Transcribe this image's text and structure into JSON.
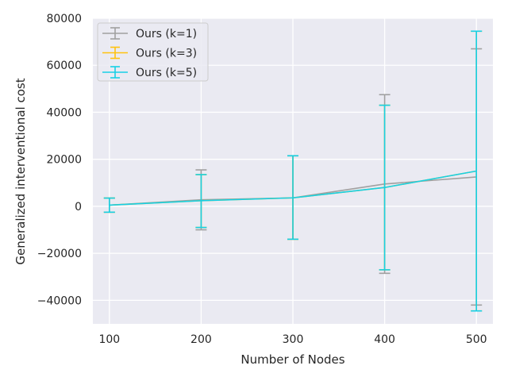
{
  "chart_data": {
    "type": "line",
    "title": "",
    "xlabel": "Number of Nodes",
    "ylabel": "Generalized interventional cost",
    "x": [
      100,
      200,
      300,
      400,
      500
    ],
    "xlim": [
      82,
      518
    ],
    "ylim": [
      -50000,
      80000
    ],
    "xticks": [
      100,
      200,
      300,
      400,
      500
    ],
    "xtick_labels": [
      "100",
      "200",
      "300",
      "400",
      "500"
    ],
    "yticks": [
      -40000,
      -20000,
      0,
      20000,
      40000,
      60000,
      80000
    ],
    "ytick_labels": [
      "−40000",
      "−20000",
      "0",
      "20000",
      "40000",
      "60000",
      "80000"
    ],
    "grid": true,
    "legend_position": "top-left",
    "series": [
      {
        "name": "Ours (k=1)",
        "color": "#a0a0a0",
        "values": [
          500,
          2800,
          3600,
          9500,
          12500
        ],
        "err_low": [
          -2500,
          -10000,
          -14000,
          -28500,
          -42000
        ],
        "err_high": [
          3500,
          15500,
          21500,
          47500,
          67000
        ]
      },
      {
        "name": "Ours (k=3)",
        "color": "#ffc20e",
        "values": [
          500,
          2400,
          3600,
          8000,
          15000
        ],
        "err_low": [
          -2500,
          -9000,
          -14000,
          -27000,
          -44500
        ],
        "err_high": [
          3500,
          13500,
          21500,
          43000,
          74500
        ]
      },
      {
        "name": "Ours (k=5)",
        "color": "#17d0e6",
        "values": [
          500,
          2400,
          3600,
          8000,
          15000
        ],
        "err_low": [
          -2500,
          -9000,
          -14000,
          -27000,
          -44500
        ],
        "err_high": [
          3500,
          13500,
          21500,
          43000,
          74500
        ]
      }
    ]
  }
}
